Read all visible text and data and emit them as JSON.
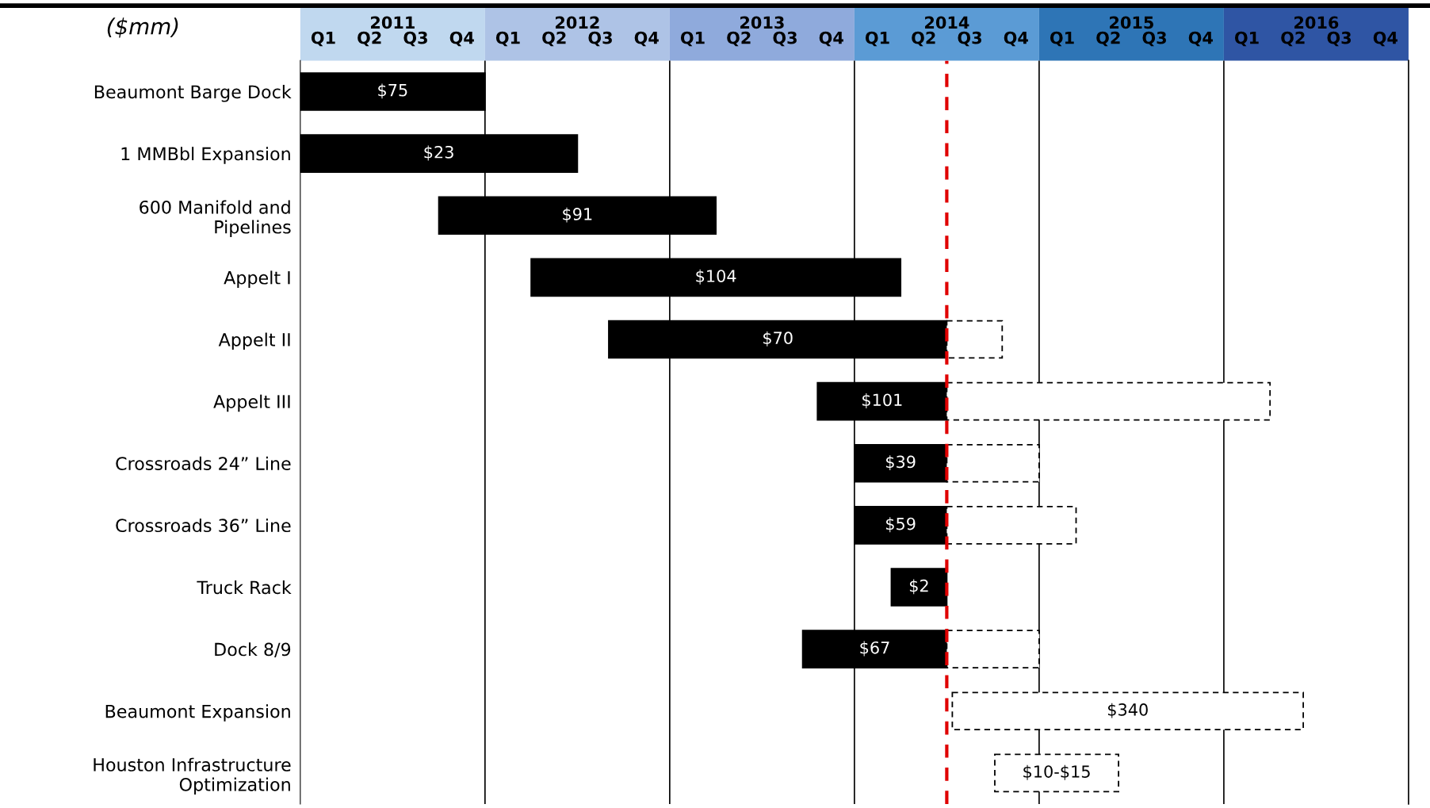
{
  "chart_data": {
    "type": "bar",
    "orientation": "horizontal",
    "title": "($mm)",
    "categories": [
      "Beaumont Barge Dock",
      "1 MMBbl Expansion",
      "600 Manifold and\nPipelines",
      "Appelt I",
      "Appelt II",
      "Appelt III",
      "Crossroads 24” Line",
      "Crossroads 36” Line",
      "Truck Rack",
      "Dock 8/9",
      "Beaumont Expansion",
      "Houston Infrastructure\nOptimization"
    ],
    "series": [
      {
        "color": "#000000",
        "line_style": "solid",
        "base": [
          2010.5,
          2010.5,
          2011.25,
          2011.75,
          2012.17,
          2013.3,
          2013.5,
          2013.5,
          2013.7,
          2013.22,
          null,
          null
        ],
        "values": [
          1.0,
          1.5,
          1.5,
          2.0,
          1.83,
          0.7,
          0.5,
          0.5,
          0.3,
          0.78,
          null,
          null
        ]
      },
      {
        "color": "#000000",
        "line_style": "dashed",
        "base": [
          null,
          null,
          null,
          null,
          2014.0,
          2014.0,
          2014.0,
          2014.0,
          null,
          2014.0,
          2014.03,
          2014.26
        ],
        "values": [
          null,
          null,
          null,
          null,
          0.3,
          1.75,
          0.5,
          0.7,
          null,
          0.5,
          1.9,
          0.67
        ]
      }
    ],
    "xlim": [
      2010.5,
      2016.5
    ],
    "xticks": [
      2011,
      2012,
      2013,
      2014,
      2015,
      2016
    ],
    "annotations": [
      "Q1",
      "Q2",
      "Q3",
      "Q4",
      "Q1",
      "Q2",
      "Q3",
      "Q4",
      "Q1",
      "Q2",
      "Q3",
      "Q4",
      "Q1",
      "Q2",
      "Q3",
      "Q4",
      "Q1",
      "Q2",
      "Q3",
      "Q4",
      "Q1",
      "Q2",
      "Q3",
      "Q4",
      "$75",
      "$23",
      "$91",
      "$104",
      "$70",
      "$101",
      "$39",
      "$59",
      "$2",
      "$67",
      "$340",
      "$10-$15"
    ],
    "ref_lines": [
      {
        "axis": "x",
        "value": 2011.5,
        "label": null,
        "color": "#000000",
        "line_style": "solid"
      },
      {
        "axis": "x",
        "value": 2012.5,
        "label": null,
        "color": "#000000",
        "line_style": "solid"
      },
      {
        "axis": "x",
        "value": 2013.5,
        "label": null,
        "color": "#000000",
        "line_style": "solid"
      },
      {
        "axis": "x",
        "value": 2014.5,
        "label": null,
        "color": "#000000",
        "line_style": "solid"
      },
      {
        "axis": "x",
        "value": 2015.5,
        "label": null,
        "color": "#000000",
        "line_style": "solid"
      },
      {
        "axis": "x",
        "value": 2014.0,
        "label": null,
        "color": "#e00000",
        "line_style": "dashed"
      }
    ]
  }
}
